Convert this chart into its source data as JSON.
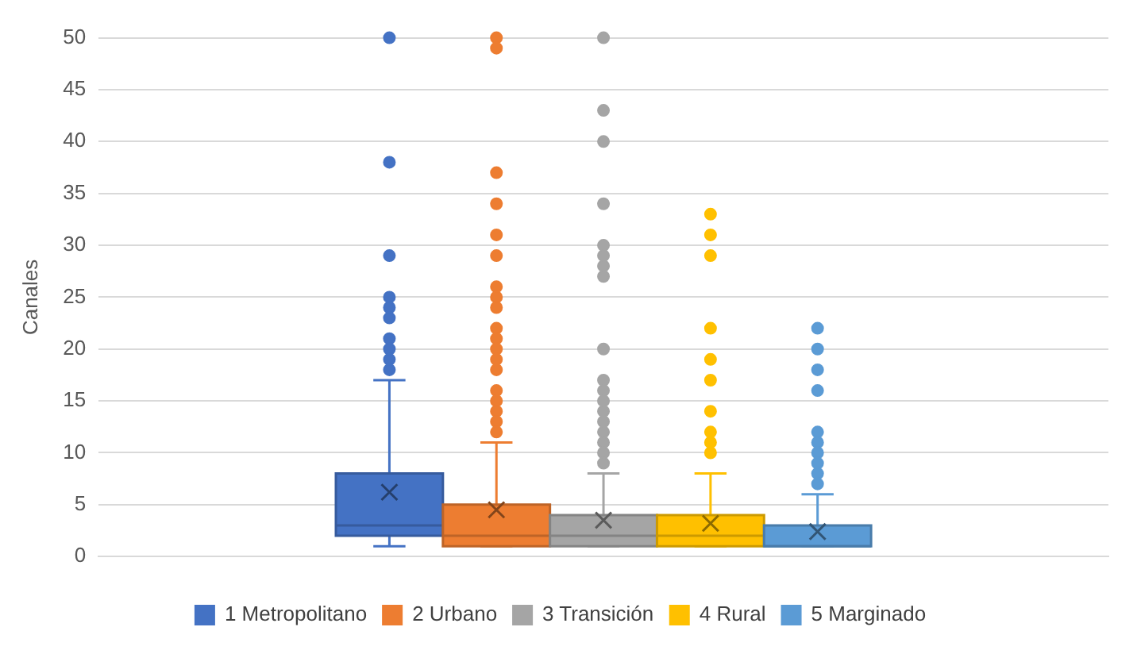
{
  "chart_data": {
    "type": "box",
    "ylabel": "Canales",
    "categories": [
      null
    ],
    "ylim": [
      0,
      50
    ],
    "yticks": [
      0,
      5,
      10,
      15,
      20,
      25,
      30,
      35,
      40,
      45,
      50
    ],
    "grid": "y",
    "legend": "bottom",
    "marker": "circle",
    "series": [
      {
        "name": "1 Metropolitano",
        "color": "#4472c4",
        "boxes": [
          {
            "low": 1,
            "q1": 2,
            "median": 3,
            "q3": 8,
            "high": 17,
            "mean": 6.2,
            "outliers": [
              50,
              38,
              29,
              25,
              24,
              23,
              21,
              20,
              19,
              18
            ]
          }
        ]
      },
      {
        "name": "2 Urbano",
        "color": "#ed7d31",
        "boxes": [
          {
            "low": 1,
            "q1": 1,
            "median": 2,
            "q3": 5,
            "high": 11,
            "mean": 4.5,
            "outliers": [
              50,
              49,
              37,
              34,
              31,
              29,
              26,
              25,
              24,
              22,
              21,
              20,
              19,
              18,
              16,
              15,
              14,
              13,
              12
            ]
          }
        ]
      },
      {
        "name": "3 Transición",
        "color": "#a5a5a5",
        "boxes": [
          {
            "low": 1,
            "q1": 1,
            "median": 2,
            "q3": 4,
            "high": 8,
            "mean": 3.5,
            "outliers": [
              50,
              43,
              40,
              34,
              30,
              29,
              28,
              27,
              20,
              17,
              16,
              15,
              14,
              13,
              12,
              11,
              10,
              9
            ]
          }
        ]
      },
      {
        "name": "4 Rural",
        "color": "#ffc000",
        "boxes": [
          {
            "low": 1,
            "q1": 1,
            "median": 2,
            "q3": 4,
            "high": 8,
            "mean": 3.2,
            "outliers": [
              33,
              31,
              29,
              22,
              19,
              17,
              14,
              12,
              11,
              10
            ]
          }
        ]
      },
      {
        "name": "5 Marginado",
        "color": "#5b9bd5",
        "boxes": [
          {
            "low": 1,
            "q1": 1,
            "median": 1,
            "q3": 3,
            "high": 6,
            "mean": 2.4,
            "outliers": [
              22,
              20,
              18,
              16,
              12,
              11,
              10,
              9,
              8,
              7
            ]
          }
        ]
      }
    ]
  }
}
